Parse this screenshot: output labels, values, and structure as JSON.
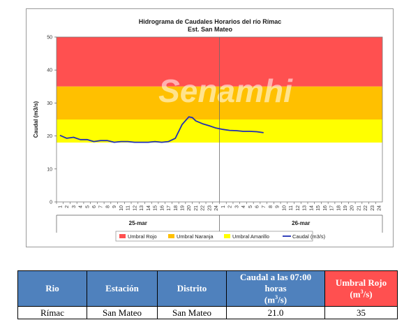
{
  "chart_data": {
    "type": "line",
    "title": "Hidrograma de Caudales Horarios del río Rímac",
    "subtitle": "Est. San Mateo",
    "ylabel": "Caudal  (m3/s)",
    "ylim": [
      0,
      50
    ],
    "yticks": [
      0,
      10,
      20,
      30,
      40,
      50
    ],
    "grid": false,
    "x_tick_labels": [
      "1",
      "2",
      "3",
      "4",
      "5",
      "6",
      "7",
      "8",
      "9",
      "10",
      "11",
      "12",
      "13",
      "14",
      "15",
      "16",
      "17",
      "18",
      "19",
      "20",
      "21",
      "22",
      "23",
      "24",
      "1",
      "2",
      "3",
      "4",
      "5",
      "6",
      "7",
      "8",
      "9",
      "10",
      "11",
      "12",
      "13",
      "14",
      "15",
      "16",
      "17",
      "18",
      "19",
      "20",
      "21",
      "22",
      "23",
      "24"
    ],
    "day_labels": [
      "25-mar",
      "26-mar"
    ],
    "thresholds": [
      {
        "name": "Umbral Rojo",
        "from": 35,
        "to": 50,
        "color": "#ff5050"
      },
      {
        "name": "Umbral Naranja",
        "from": 25,
        "to": 35,
        "color": "#ffc000"
      },
      {
        "name": "Umbral Amarillo",
        "from": 18,
        "to": 25,
        "color": "#ffff00"
      }
    ],
    "series": [
      {
        "name": "Caudal (m3/s)",
        "color": "#1f2fb5",
        "x": [
          1,
          2,
          3,
          4,
          5,
          6,
          7,
          8,
          9,
          10,
          11,
          12,
          13,
          14,
          15,
          16,
          17,
          18,
          19,
          20,
          20.5,
          21,
          22,
          23,
          24,
          25,
          26,
          27,
          28,
          29,
          30,
          31
        ],
        "values": [
          20.2,
          19.3,
          19.6,
          18.9,
          18.9,
          18.3,
          18.6,
          18.6,
          18.1,
          18.3,
          18.3,
          18.1,
          18.1,
          18.1,
          18.3,
          18.1,
          18.3,
          19.3,
          23.5,
          25.8,
          25.6,
          24.6,
          23.7,
          23.1,
          22.4,
          22.0,
          21.7,
          21.6,
          21.4,
          21.4,
          21.3,
          21.0
        ]
      }
    ],
    "legend_position": "bottom",
    "watermark": "Senamhi"
  },
  "table": {
    "headers": [
      "Rio",
      "Estación",
      "Distrito",
      "Caudal a las 07:00 horas (m3/s)",
      "Umbral Rojo (m3/s)"
    ],
    "header_caudal_main": "Caudal a las 07:00 horas",
    "header_caudal_unit_pre": "(m",
    "header_caudal_unit_sup": "3",
    "header_caudal_unit_post": "/s)",
    "header_umbral_main": "Umbral Rojo",
    "header_umbral_unit_pre": "(m",
    "header_umbral_unit_sup": "3",
    "header_umbral_unit_post": "/s)",
    "row": [
      "Rímac",
      "San Mateo",
      "San Mateo",
      "21.0",
      "35"
    ],
    "colors": {
      "header_blue": "#4f81bd",
      "header_red": "#ff5050"
    }
  }
}
